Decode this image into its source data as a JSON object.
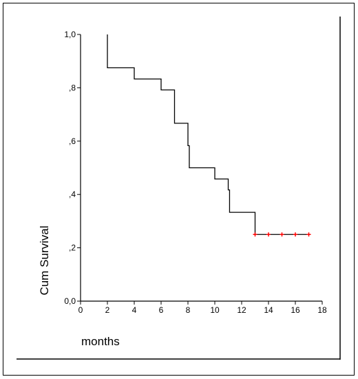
{
  "chart_data": {
    "type": "line",
    "ylabel": "Cum Survival",
    "xlabel": "months",
    "xlim": [
      0,
      18
    ],
    "ylim": [
      0,
      1
    ],
    "x_ticks": [
      0,
      2,
      4,
      6,
      8,
      10,
      12,
      14,
      16,
      18
    ],
    "x_tick_labels": [
      "0",
      "2",
      "4",
      "6",
      "8",
      "10",
      "12",
      "14",
      "16",
      "18"
    ],
    "y_ticks": [
      0,
      0.2,
      0.4,
      0.6,
      0.8,
      1.0
    ],
    "y_tick_labels": [
      "0,0",
      ",2",
      ",4",
      ",6",
      ",8",
      "1,0"
    ],
    "grid": false,
    "series": [
      {
        "step": true,
        "color": "#000000",
        "x": [
          2,
          2,
          4,
          6,
          7,
          8,
          8.1,
          10,
          11,
          11.1,
          13,
          17
        ],
        "y": [
          1.0,
          0.875,
          0.833,
          0.792,
          0.667,
          0.583,
          0.5,
          0.458,
          0.417,
          0.333,
          0.25,
          0.25
        ]
      }
    ],
    "censored": {
      "color": "#ff0000",
      "x": [
        13,
        14,
        15,
        16,
        17
      ],
      "y": [
        0.25,
        0.25,
        0.25,
        0.25,
        0.25
      ]
    }
  }
}
